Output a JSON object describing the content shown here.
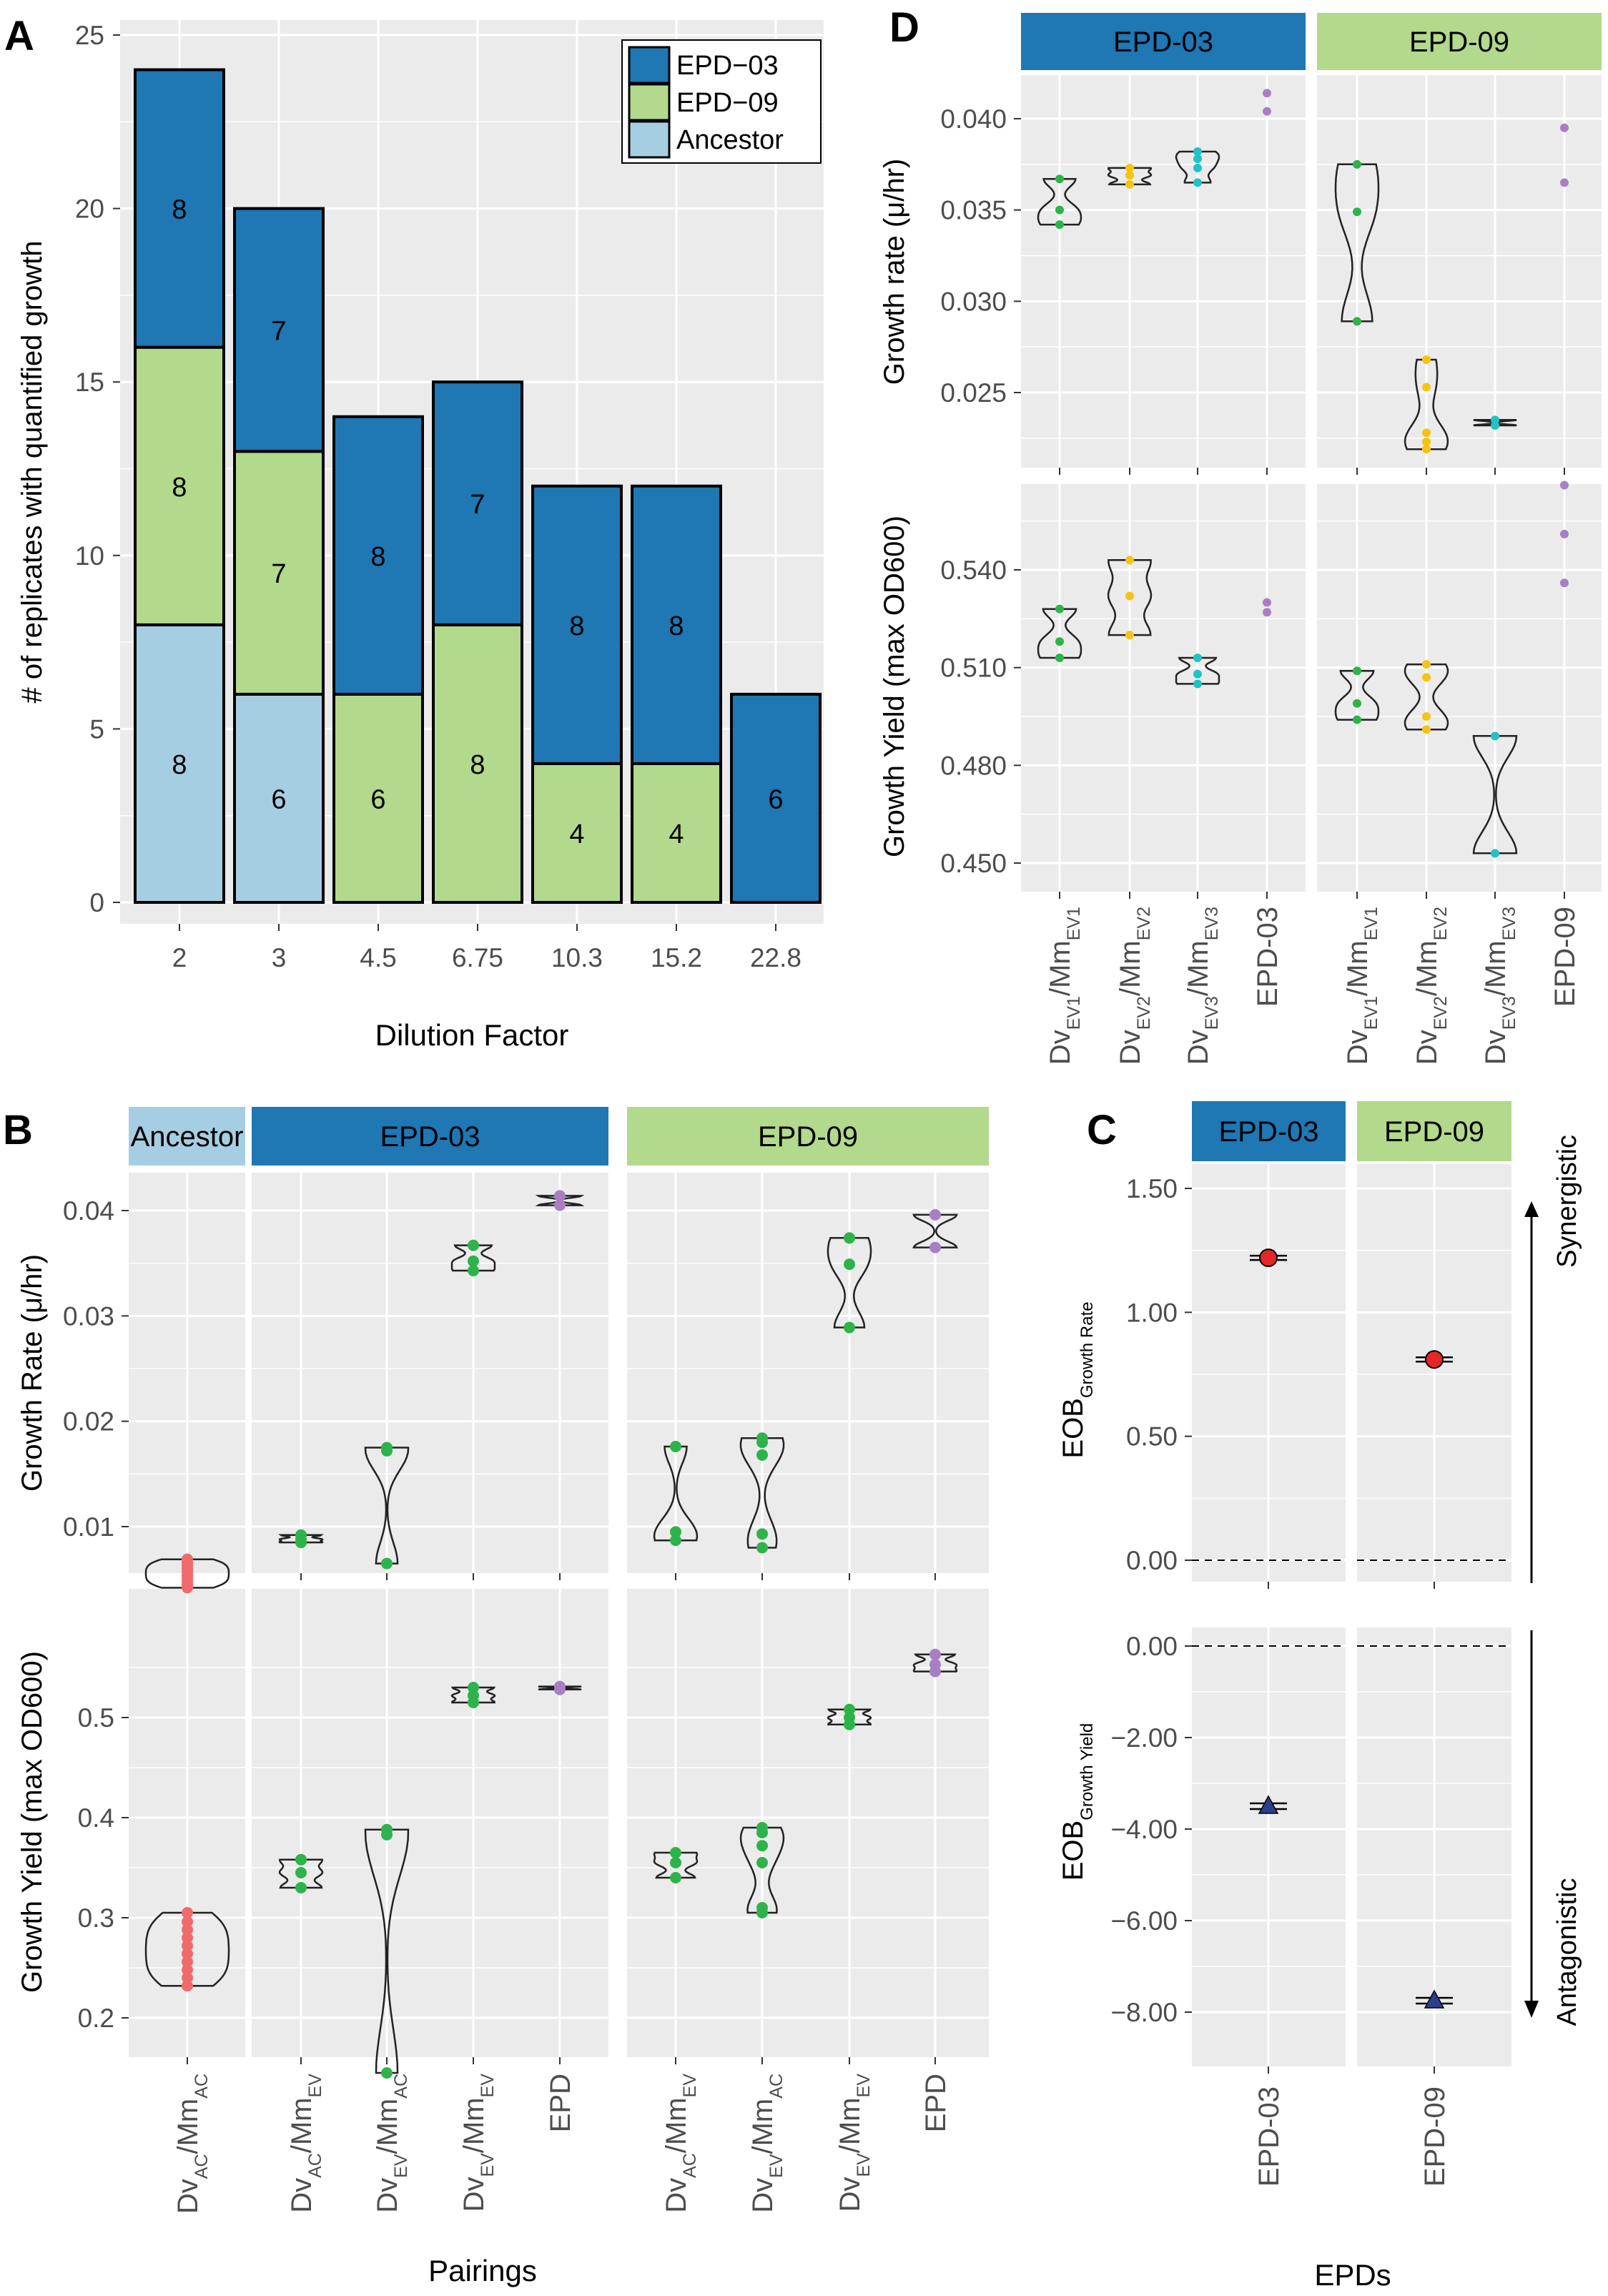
{
  "panelA": {
    "letter": "A",
    "ylabel": "# of replicates with quantified  growth",
    "xlabel": "Dilution Factor",
    "yticks": [
      "0",
      "5",
      "10",
      "15",
      "20",
      "25"
    ],
    "legend": [
      "EPD−03",
      "EPD−09",
      "Ancestor"
    ]
  },
  "panelB": {
    "letter": "B",
    "strips": [
      "Ancestor",
      "EPD-03",
      "EPD-09"
    ],
    "ylabel_top": "Growth Rate (μ/hr)",
    "ylabel_bottom": "Growth Yield (max OD600)",
    "yticks_top": [
      "0.01",
      "0.02",
      "0.03",
      "0.04"
    ],
    "yticks_bottom": [
      "0.2",
      "0.3",
      "0.4",
      "0.5"
    ],
    "xlabel": "Pairings",
    "xcats": [
      "DvAC/MmAC",
      "DvAC/MmEV",
      "DvEV/MmAC",
      "DvEV/MmEV",
      "EPD",
      "DvAC/MmEV",
      "DvEV/MmAC",
      "DvEV/MmEV",
      "EPD"
    ]
  },
  "panelC": {
    "letter": "C",
    "strips": [
      "EPD-03",
      "EPD-09"
    ],
    "ylabel_top": "EOB Growth Rate",
    "ylabel_bottom": "EOB Growth Yield",
    "yticks_top": [
      "0.00",
      "0.50",
      "1.00",
      "1.50"
    ],
    "yticks_bottom": [
      "0.00",
      "−2.00",
      "−4.00",
      "−6.00",
      "−8.00"
    ],
    "xcats": [
      "EPD-03",
      "EPD-09"
    ],
    "xlabel": "EPDs",
    "synergistic": "Synergistic",
    "antagonistic": "Antagonistic"
  },
  "panelD": {
    "letter": "D",
    "strips": [
      "EPD-03",
      "EPD-09"
    ],
    "ylabel_top": "Growth rate (μ/hr)",
    "ylabel_bottom": "Growth Yield (max OD600)",
    "yticks_top": [
      "0.025",
      "0.030",
      "0.035",
      "0.040"
    ],
    "yticks_bottom": [
      "0.450",
      "0.480",
      "0.510",
      "0.540"
    ],
    "xcats": [
      "DvEV1/MmEV1",
      "DvEV2/MmEV2",
      "DvEV3/MmEV3",
      "EPD-03",
      "DvEV1/MmEV1",
      "DvEV2/MmEV2",
      "DvEV3/MmEV3",
      "EPD-09"
    ]
  },
  "colors": {
    "epd03": "#1f77b4",
    "epd09": "#b2d98c",
    "ancestor": "#a6cee3",
    "panel_bg": "#ebebeb",
    "grid": "#ffffff",
    "green_pts": "#2db34a",
    "orange_pts": "#f5c413",
    "cyan_pts": "#22c1c6",
    "purple_pts": "#a97fc4",
    "red_pts": "#f06b6b",
    "rate_marker": "#e52626",
    "yield_marker": "#2b3f8c"
  },
  "chart_data": [
    {
      "type": "bar",
      "panel": "A",
      "categories": [
        "2",
        "3",
        "4.5",
        "6.75",
        "10.3",
        "15.2",
        "22.8"
      ],
      "series": [
        {
          "name": "Ancestor",
          "values": [
            8,
            6,
            0,
            0,
            0,
            0,
            0
          ]
        },
        {
          "name": "EPD−09",
          "values": [
            8,
            7,
            6,
            8,
            4,
            4,
            0
          ]
        },
        {
          "name": "EPD−03",
          "values": [
            8,
            7,
            8,
            7,
            8,
            8,
            6
          ]
        }
      ],
      "xlabel": "Dilution Factor",
      "ylabel": "# of replicates with quantified  growth",
      "ylim": [
        0,
        25
      ],
      "stacked": true,
      "legend": "top-right"
    },
    {
      "type": "scatter",
      "panel": "B-growth-rate",
      "groups": [
        {
          "facet": "Ancestor",
          "x": "DvAC/MmAC",
          "values": [
            0.0042,
            0.0045,
            0.0048,
            0.0051,
            0.0054,
            0.0057,
            0.006,
            0.0063,
            0.0066,
            0.0069
          ]
        },
        {
          "facet": "EPD-03",
          "x": "DvAC/MmEV",
          "values": [
            0.0085,
            0.0088,
            0.0092
          ]
        },
        {
          "facet": "EPD-03",
          "x": "DvEV/MmAC",
          "values": [
            0.0065,
            0.0172,
            0.0175
          ]
        },
        {
          "facet": "EPD-03",
          "x": "DvEV/MmEV",
          "values": [
            0.0343,
            0.0352,
            0.0367
          ]
        },
        {
          "facet": "EPD-03",
          "x": "EPD",
          "values": [
            0.0405,
            0.0414
          ]
        },
        {
          "facet": "EPD-09",
          "x": "DvAC/MmEV",
          "values": [
            0.0087,
            0.0095,
            0.0176
          ]
        },
        {
          "facet": "EPD-09",
          "x": "DvEV/MmAC",
          "values": [
            0.008,
            0.0093,
            0.0168,
            0.018,
            0.0184
          ]
        },
        {
          "facet": "EPD-09",
          "x": "DvEV/MmEV",
          "values": [
            0.0289,
            0.0349,
            0.0374
          ]
        },
        {
          "facet": "EPD-09",
          "x": "EPD",
          "values": [
            0.0365,
            0.0396
          ]
        }
      ],
      "ylabel": "Growth Rate (μ/hr)",
      "ylim": [
        0.0025,
        0.0445
      ]
    },
    {
      "type": "scatter",
      "panel": "B-growth-yield",
      "groups": [
        {
          "facet": "Ancestor",
          "x": "DvAC/MmAC",
          "values": [
            0.232,
            0.24,
            0.248,
            0.256,
            0.264,
            0.272,
            0.28,
            0.288,
            0.296,
            0.305
          ]
        },
        {
          "facet": "EPD-03",
          "x": "DvAC/MmEV",
          "values": [
            0.33,
            0.345,
            0.358
          ]
        },
        {
          "facet": "EPD-03",
          "x": "DvEV/MmAC",
          "values": [
            0.145,
            0.383,
            0.388
          ]
        },
        {
          "facet": "EPD-03",
          "x": "DvEV/MmEV",
          "values": [
            0.515,
            0.522,
            0.53
          ]
        },
        {
          "facet": "EPD-03",
          "x": "EPD",
          "values": [
            0.528,
            0.531
          ]
        },
        {
          "facet": "EPD-09",
          "x": "DvAC/MmEV",
          "values": [
            0.34,
            0.355,
            0.365
          ]
        },
        {
          "facet": "EPD-09",
          "x": "DvEV/MmAC",
          "values": [
            0.305,
            0.31,
            0.355,
            0.372,
            0.385,
            0.39
          ]
        },
        {
          "facet": "EPD-09",
          "x": "DvEV/MmEV",
          "values": [
            0.493,
            0.5,
            0.508
          ]
        },
        {
          "facet": "EPD-09",
          "x": "EPD",
          "values": [
            0.546,
            0.553,
            0.563
          ]
        }
      ],
      "ylabel": "Growth Yield (max OD600)",
      "ylim": [
        0.125,
        0.595
      ]
    },
    {
      "type": "scatter",
      "panel": "C",
      "categories": [
        "EPD-03",
        "EPD-09"
      ],
      "series": [
        {
          "name": "EOB Growth Rate",
          "values": [
            1.22,
            0.81
          ]
        },
        {
          "name": "EOB Growth Yield",
          "values": [
            -3.5,
            -7.75
          ]
        }
      ],
      "ylim_top": [
        -0.05,
        1.62
      ],
      "ylim_bottom": [
        -9.1,
        0.3
      ]
    },
    {
      "type": "scatter",
      "panel": "D-growth-rate",
      "groups": [
        {
          "facet": "EPD-03",
          "x": "DvEV1/MmEV1",
          "values": [
            0.0342,
            0.035,
            0.0367
          ]
        },
        {
          "facet": "EPD-03",
          "x": "DvEV2/MmEV2",
          "values": [
            0.0364,
            0.0369,
            0.0373
          ]
        },
        {
          "facet": "EPD-03",
          "x": "DvEV3/MmEV3",
          "values": [
            0.0365,
            0.0373,
            0.0378,
            0.0382
          ]
        },
        {
          "facet": "EPD-03",
          "x": "EPD-03",
          "values": [
            0.0404,
            0.0414
          ]
        },
        {
          "facet": "EPD-09",
          "x": "DvEV1/MmEV1",
          "values": [
            0.0289,
            0.0349,
            0.0375
          ]
        },
        {
          "facet": "EPD-09",
          "x": "DvEV2/MmEV2",
          "values": [
            0.0219,
            0.0223,
            0.0228,
            0.0253,
            0.0268
          ]
        },
        {
          "facet": "EPD-09",
          "x": "DvEV3/MmEV3",
          "values": [
            0.0232,
            0.0235
          ]
        },
        {
          "facet": "EPD-09",
          "x": "EPD-09",
          "values": [
            0.0365,
            0.0395
          ]
        }
      ],
      "ylabel": "Growth rate (μ/hr)",
      "ylim": [
        0.0207,
        0.0438
      ]
    },
    {
      "type": "scatter",
      "panel": "D-growth-yield",
      "groups": [
        {
          "facet": "EPD-03",
          "x": "DvEV1/MmEV1",
          "values": [
            0.513,
            0.518,
            0.528
          ]
        },
        {
          "facet": "EPD-03",
          "x": "DvEV2/MmEV2",
          "values": [
            0.52,
            0.532,
            0.543
          ]
        },
        {
          "facet": "EPD-03",
          "x": "DvEV3/MmEV3",
          "values": [
            0.505,
            0.508,
            0.513
          ]
        },
        {
          "facet": "EPD-03",
          "x": "EPD-03",
          "values": [
            0.527,
            0.53
          ]
        },
        {
          "facet": "EPD-09",
          "x": "DvEV1/MmEV1",
          "values": [
            0.494,
            0.499,
            0.509
          ]
        },
        {
          "facet": "EPD-09",
          "x": "DvEV2/MmEV2",
          "values": [
            0.491,
            0.495,
            0.507,
            0.511
          ]
        },
        {
          "facet": "EPD-09",
          "x": "DvEV3/MmEV3",
          "values": [
            0.453,
            0.489
          ]
        },
        {
          "facet": "EPD-09",
          "x": "EPD-09",
          "values": [
            0.536,
            0.551,
            0.566
          ]
        }
      ],
      "ylabel": "Growth Yield (max OD600)",
      "ylim": [
        0.445,
        0.572
      ]
    }
  ]
}
